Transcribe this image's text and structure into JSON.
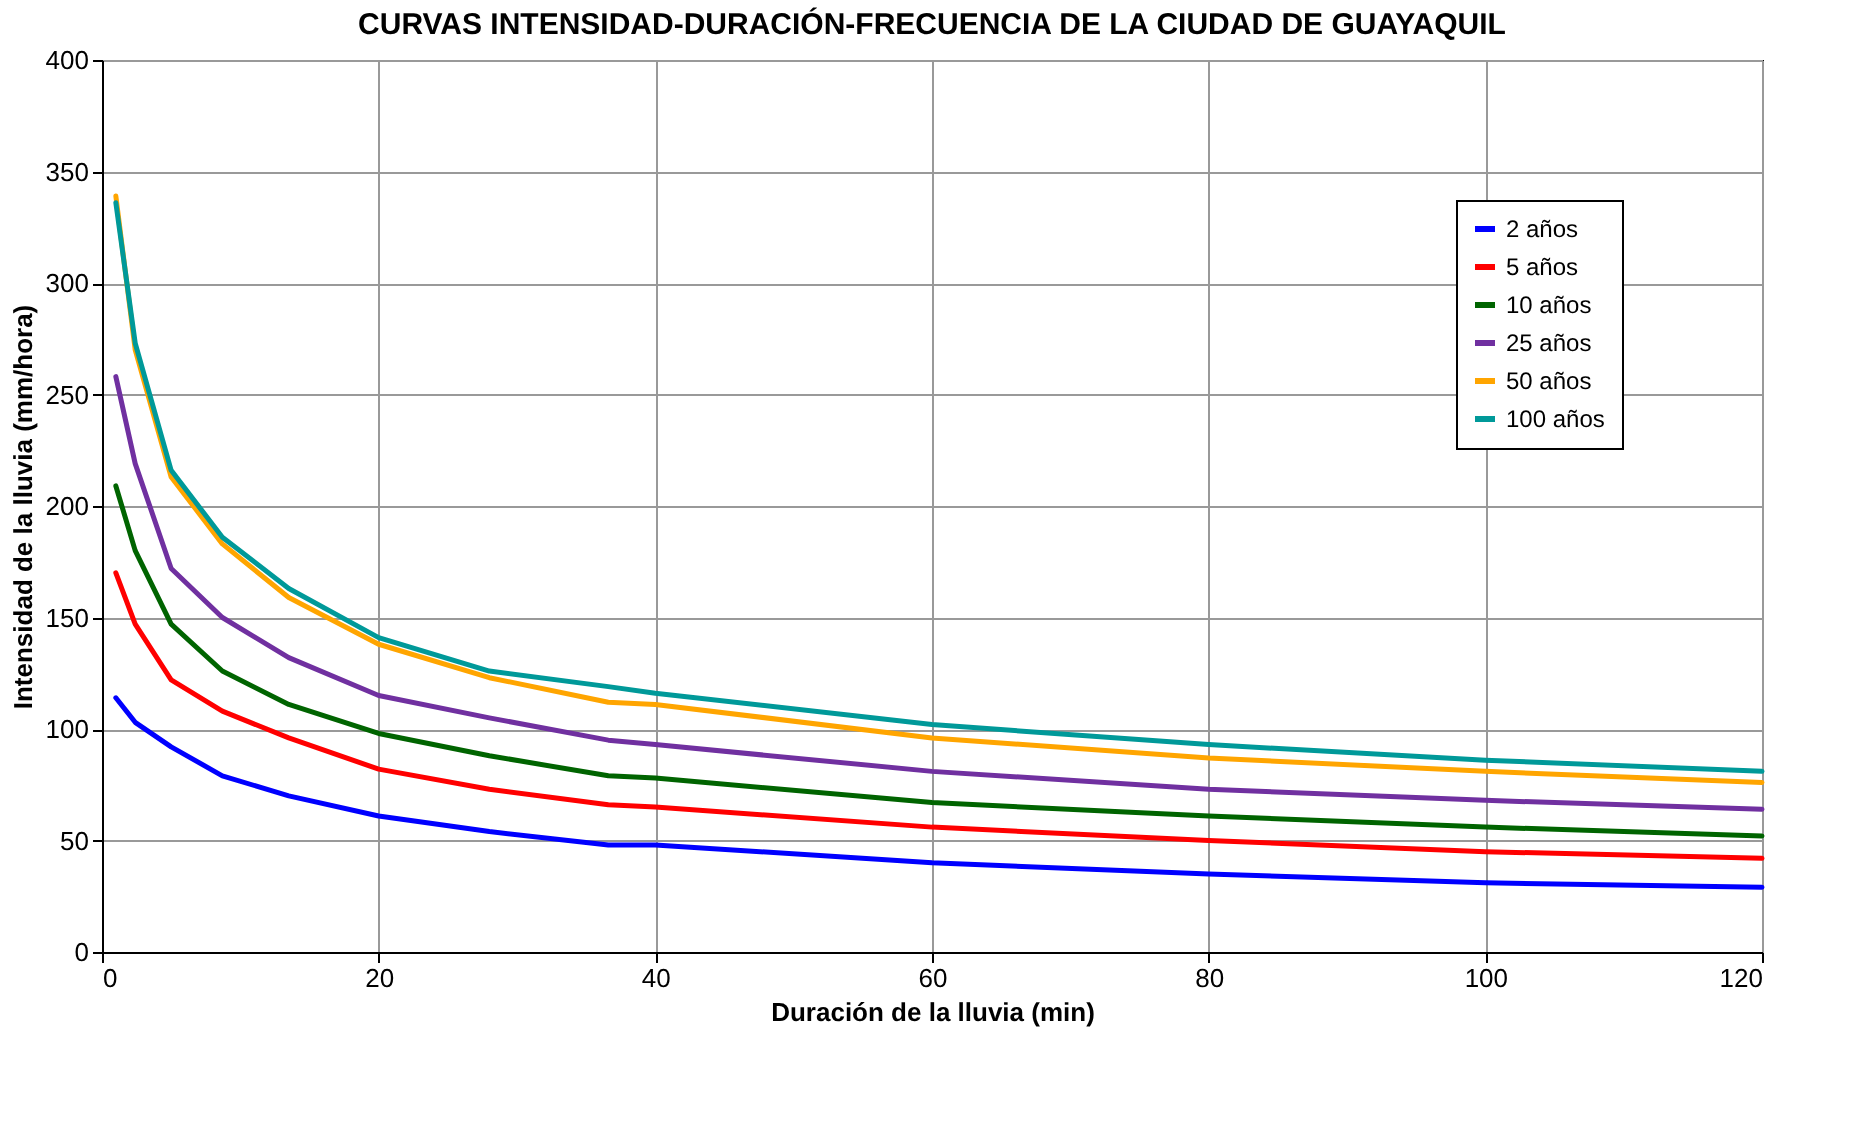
{
  "chart_data": {
    "type": "line",
    "title": "CURVAS INTENSIDAD-DURACIÓN-FRECUENCIA DE LA CIUDAD DE GUAYAQUIL",
    "xlabel": "Duración de la lluvia (min)",
    "ylabel": "Intensidad de la lluvia (mm/hora)",
    "x": [
      1,
      2.4,
      5,
      8.7,
      13.5,
      20,
      28,
      36.6,
      40,
      60,
      80,
      100,
      120
    ],
    "series": [
      {
        "name": "2 años",
        "color": "#0000ff",
        "values": [
          114,
          103,
          92,
          79,
          70,
          61,
          54,
          48,
          48,
          40,
          35,
          31,
          29
        ]
      },
      {
        "name": "5 años",
        "color": "#ff0000",
        "values": [
          170,
          147,
          122,
          108,
          96,
          82,
          73,
          66,
          65,
          56,
          50,
          45,
          42
        ]
      },
      {
        "name": "10 años",
        "color": "#006400",
        "values": [
          209,
          180,
          147,
          126,
          111,
          98,
          88,
          79,
          78,
          67,
          61,
          56,
          52
        ]
      },
      {
        "name": "25 años",
        "color": "#7030a0",
        "values": [
          258,
          219,
          172,
          150,
          132,
          115,
          105,
          95,
          93,
          81,
          73,
          68,
          64
        ]
      },
      {
        "name": "50 años",
        "color": "#ffa500",
        "values": [
          339,
          270,
          213,
          183,
          159,
          138,
          123,
          112,
          111,
          96,
          87,
          81,
          76
        ]
      },
      {
        "name": "100 años",
        "color": "#009999",
        "values": [
          336,
          273,
          216,
          186,
          163,
          141,
          126,
          119,
          116,
          102,
          93,
          86,
          81
        ]
      }
    ],
    "xlim": [
      0,
      120
    ],
    "xticks": [
      0,
      20,
      40,
      60,
      80,
      100,
      120
    ],
    "ylim": [
      0,
      400
    ],
    "yticks": [
      0,
      50,
      100,
      150,
      200,
      250,
      300,
      350,
      400
    ],
    "grid": true,
    "legend": "top right",
    "marker": "none",
    "line_style": "solid"
  }
}
